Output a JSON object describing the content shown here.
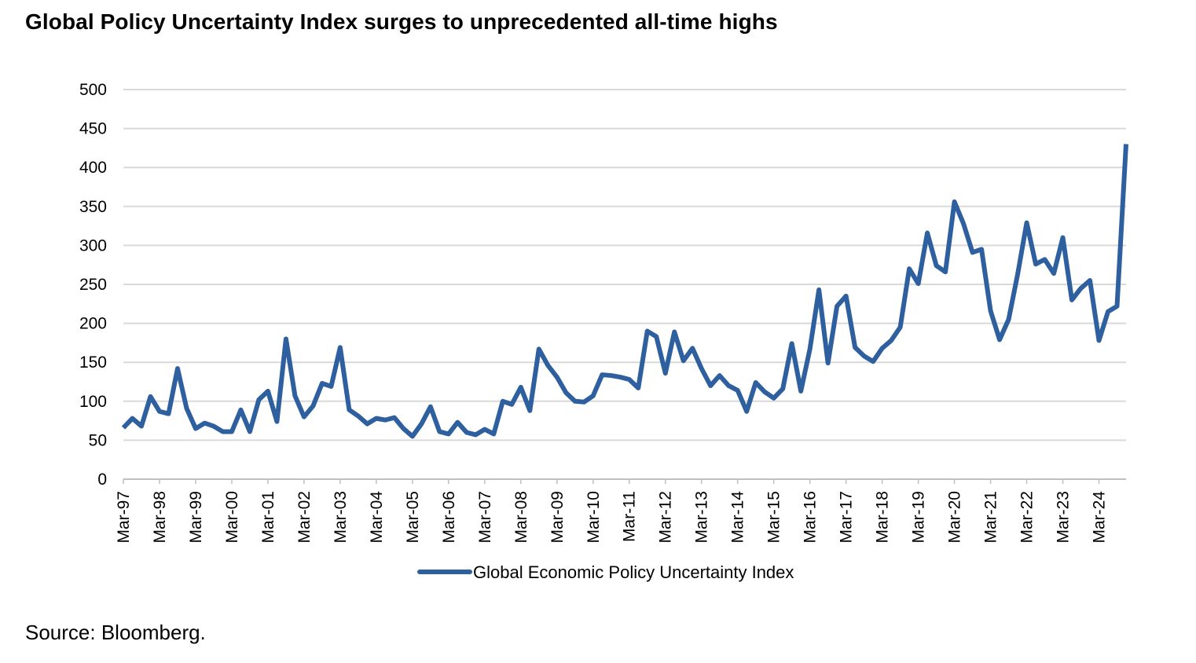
{
  "title": "Global Policy Uncertainty Index surges to unprecedented all-time highs",
  "source": "Source: Bloomberg.",
  "chart_data": {
    "type": "line",
    "title": "Global Policy Uncertainty Index surges to unprecedented all-time highs",
    "ylim": [
      0,
      500
    ],
    "y_ticks": [
      0,
      50,
      100,
      150,
      200,
      250,
      300,
      350,
      400,
      450,
      500
    ],
    "x_tick_labels": [
      "Mar-97",
      "Mar-98",
      "Mar-99",
      "Mar-00",
      "Mar-01",
      "Mar-02",
      "Mar-03",
      "Mar-04",
      "Mar-05",
      "Mar-06",
      "Mar-07",
      "Mar-08",
      "Mar-09",
      "Mar-10",
      "Mar-11",
      "Mar-12",
      "Mar-13",
      "Mar-14",
      "Mar-15",
      "Mar-16",
      "Mar-17",
      "Mar-18",
      "Mar-19",
      "Mar-20",
      "Mar-21",
      "Mar-22",
      "Mar-23",
      "Mar-24"
    ],
    "x_frequency": "quarterly",
    "x_start": "Mar-97",
    "grid": "horizontal",
    "legend_position": "bottom",
    "line_color": "#2E5F9E",
    "series": [
      {
        "name": "Global Economic Policy Uncertainty Index",
        "values": [
          66,
          78,
          68,
          106,
          87,
          84,
          142,
          91,
          65,
          72,
          68,
          61,
          61,
          89,
          61,
          102,
          113,
          74,
          180,
          107,
          80,
          94,
          123,
          119,
          169,
          89,
          81,
          71,
          78,
          76,
          79,
          65,
          55,
          71,
          93,
          61,
          58,
          73,
          60,
          57,
          64,
          58,
          100,
          96,
          118,
          88,
          167,
          146,
          131,
          111,
          100,
          99,
          107,
          134,
          133,
          131,
          128,
          117,
          190,
          183,
          136,
          189,
          152,
          168,
          142,
          120,
          133,
          120,
          114,
          87,
          124,
          112,
          104,
          116,
          174,
          113,
          167,
          243,
          149,
          222,
          235,
          169,
          158,
          151,
          168,
          178,
          195,
          270,
          251,
          316,
          274,
          266,
          356,
          328,
          291,
          295,
          216,
          179,
          205,
          263,
          329,
          276,
          282,
          264,
          310,
          230,
          245,
          255,
          178,
          215,
          222,
          430
        ]
      }
    ]
  }
}
